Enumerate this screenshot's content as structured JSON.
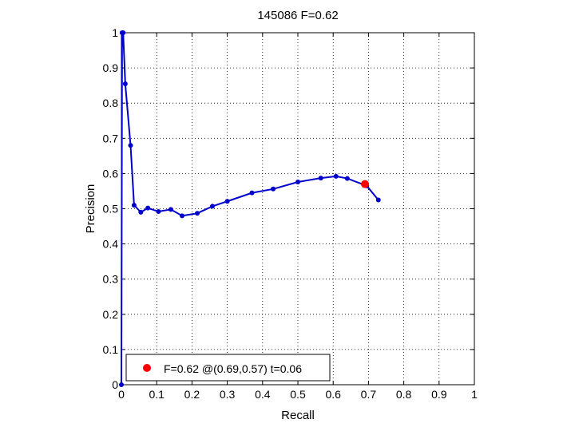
{
  "chart_data": {
    "type": "line",
    "title": "145086 F=0.62",
    "xlabel": "Recall",
    "ylabel": "Precision",
    "xlim": [
      0,
      1
    ],
    "ylim": [
      0,
      1
    ],
    "xticks": [
      "0",
      "0.1",
      "0.2",
      "0.3",
      "0.4",
      "0.5",
      "0.6",
      "0.7",
      "0.8",
      "0.9",
      "1"
    ],
    "yticks": [
      "0",
      "0.1",
      "0.2",
      "0.3",
      "0.4",
      "0.5",
      "0.6",
      "0.7",
      "0.8",
      "0.9",
      "1"
    ],
    "grid": true,
    "series": [
      {
        "color": "#0000cc",
        "x": [
          0,
          0.002,
          0.005,
          0.011,
          0.026,
          0.036,
          0.055,
          0.075,
          0.105,
          0.14,
          0.172,
          0.215,
          0.258,
          0.3,
          0.37,
          0.43,
          0.5,
          0.565,
          0.608,
          0.64,
          0.695,
          0.728
        ],
        "y": [
          0,
          1.0,
          1.0,
          0.855,
          0.68,
          0.51,
          0.49,
          0.502,
          0.492,
          0.498,
          0.48,
          0.487,
          0.507,
          0.521,
          0.545,
          0.556,
          0.576,
          0.587,
          0.592,
          0.586,
          0.565,
          0.525
        ]
      }
    ],
    "highlight": {
      "x": 0.69,
      "y": 0.57,
      "color": "#ff0000"
    },
    "legend": {
      "label": "F=0.62 @(0.69,0.57) t=0.06",
      "position": "bottom-left"
    }
  }
}
